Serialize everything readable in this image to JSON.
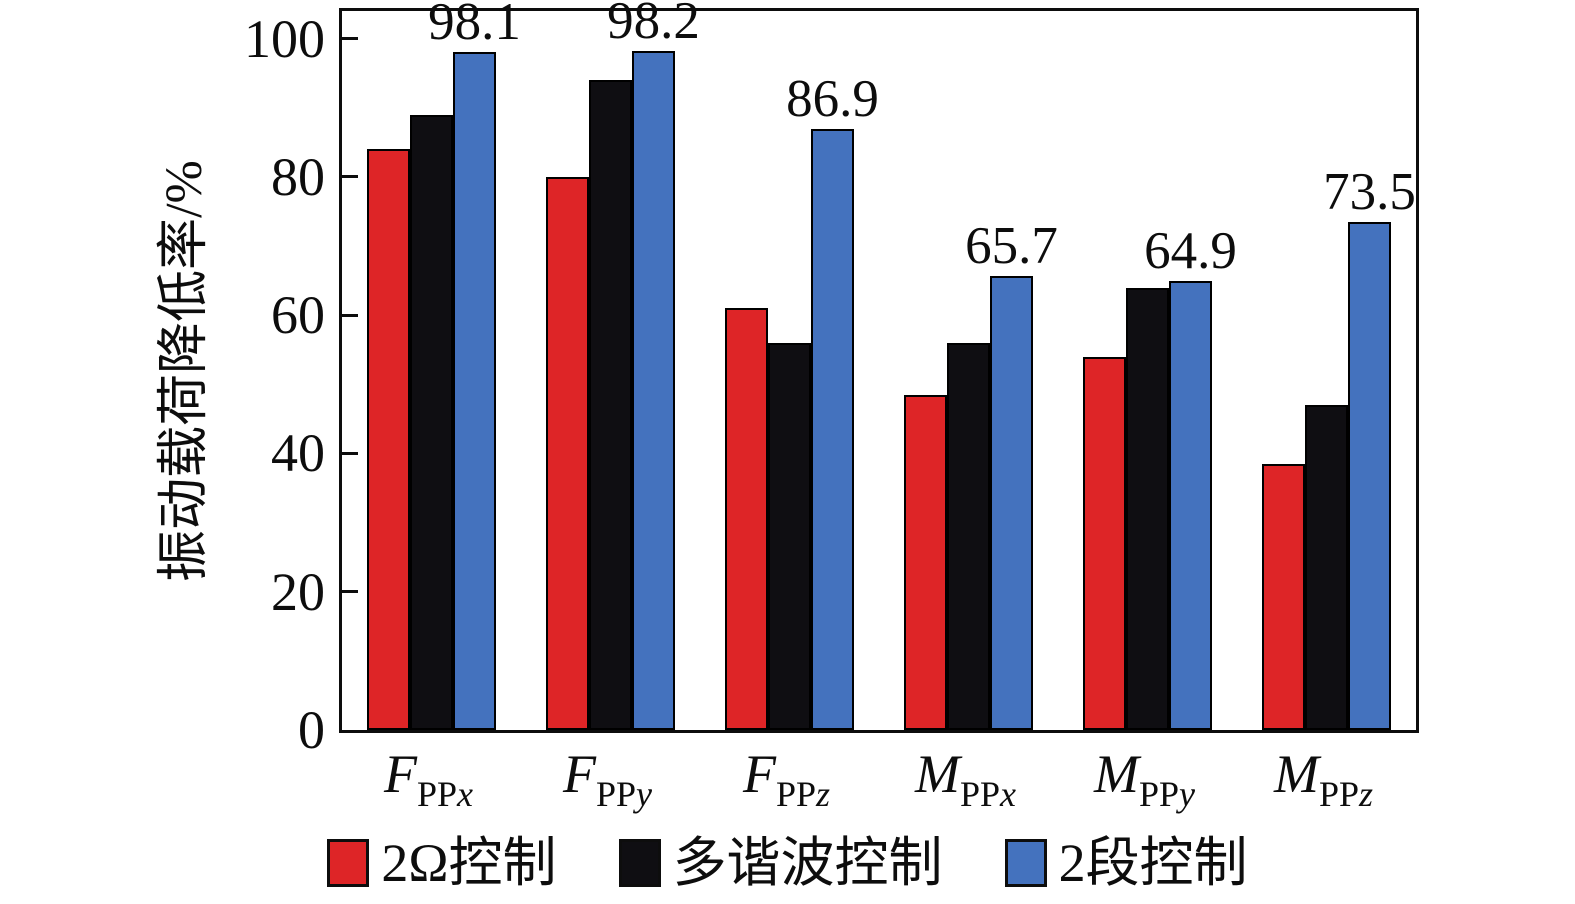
{
  "chart_data": {
    "type": "bar",
    "title": "",
    "ylabel": "振动载荷降低率/%",
    "xlabel": "",
    "ylim": [
      0,
      104
    ],
    "yticks": [
      0,
      20,
      40,
      60,
      80,
      100
    ],
    "grid": false,
    "legend_position": "bottom",
    "bar_outline_color": "#000000",
    "categories": [
      {
        "base": "F",
        "sub": "PP",
        "sub_var": "x"
      },
      {
        "base": "F",
        "sub": "PP",
        "sub_var": "y"
      },
      {
        "base": "F",
        "sub": "PP",
        "sub_var": "z"
      },
      {
        "base": "M",
        "sub": "PP",
        "sub_var": "x"
      },
      {
        "base": "M",
        "sub": "PP",
        "sub_var": "y"
      },
      {
        "base": "M",
        "sub": "PP",
        "sub_var": "z"
      }
    ],
    "series": [
      {
        "name": "2Ω控制",
        "color": "#de2527",
        "values": [
          84,
          80,
          61,
          48.5,
          54,
          38.5
        ]
      },
      {
        "name": "多谐波控制",
        "color": "#0f0e12",
        "values": [
          89,
          94,
          56,
          56,
          64,
          47
        ]
      },
      {
        "name": "2段控制",
        "color": "#4472be",
        "values": [
          98.1,
          98.2,
          86.9,
          65.7,
          64.9,
          73.5
        ],
        "data_labels": [
          "98.1",
          "98.2",
          "86.9",
          "65.7",
          "64.9",
          "73.5"
        ]
      }
    ]
  }
}
